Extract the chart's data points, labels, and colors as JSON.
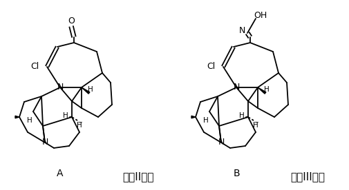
{
  "background": "#ffffff",
  "figsize": [
    5.06,
    2.76
  ],
  "dpi": 100,
  "label_A": "A",
  "label_B": "B",
  "formula_II": "式（II），",
  "formula_III": "式（III）。",
  "lw": 1.3
}
